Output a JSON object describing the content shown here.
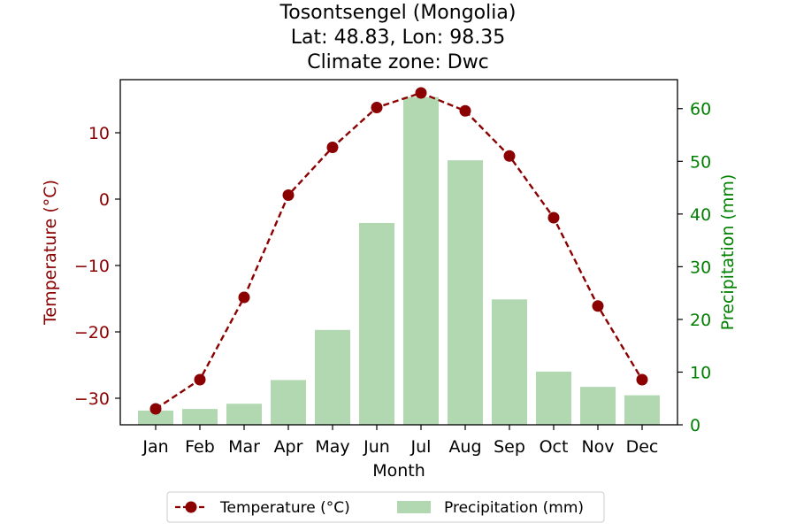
{
  "chart_data": {
    "type": "bar+line",
    "title_lines": [
      "Tosontsengel (Mongolia)",
      "Lat: 48.83, Lon: 98.35",
      "Climate zone: Dwc"
    ],
    "xlabel": "Month",
    "categories": [
      "Jan",
      "Feb",
      "Mar",
      "Apr",
      "May",
      "Jun",
      "Jul",
      "Aug",
      "Sep",
      "Oct",
      "Nov",
      "Dec"
    ],
    "temperature": {
      "name": "Temperature (°C)",
      "axis_label": "Temperature (°C)",
      "values": [
        -31.6,
        -27.2,
        -14.8,
        0.6,
        7.8,
        13.8,
        16.0,
        13.3,
        6.5,
        -2.8,
        -16.1,
        -27.2
      ],
      "ylim": [
        -34,
        18
      ],
      "ticks": [
        -30,
        -20,
        -10,
        0,
        10
      ],
      "color": "#8b0000"
    },
    "precipitation": {
      "name": "Precipitation (mm)",
      "axis_label": "Precipitation (mm)",
      "values": [
        2.7,
        3.0,
        4.0,
        8.5,
        18.0,
        38.3,
        62.2,
        50.2,
        23.8,
        10.1,
        7.2,
        5.6
      ],
      "ylim": [
        0,
        65.5
      ],
      "ticks": [
        0,
        10,
        20,
        30,
        40,
        50,
        60
      ],
      "color": "#b2d8b2",
      "axis_color": "#008000"
    },
    "legend_position": "bottom-center",
    "grid": false
  }
}
